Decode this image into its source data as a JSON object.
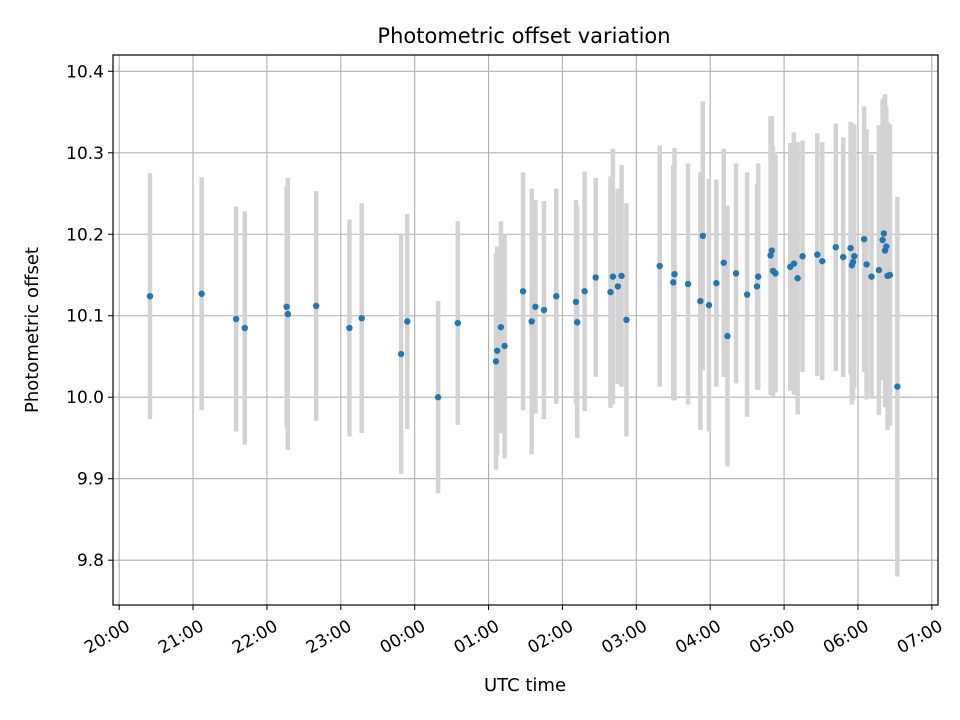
{
  "chart_data": {
    "type": "scatter",
    "title": "Photometric offset variation",
    "xlabel": "UTC time",
    "ylabel": "Photometric offset",
    "x_ticks": [
      "20:00",
      "21:00",
      "22:00",
      "23:00",
      "00:00",
      "01:00",
      "02:00",
      "03:00",
      "04:00",
      "05:00",
      "06:00",
      "07:00"
    ],
    "y_ticks": [
      "9.8",
      "9.9",
      "10.0",
      "10.1",
      "10.2",
      "10.3",
      "10.4"
    ],
    "xlim": [
      "19:55",
      "07:05"
    ],
    "ylim": [
      9.745,
      10.42
    ],
    "grid": true,
    "colors": {
      "point": "#1f77b4",
      "errorbar": "#d3d3d3"
    },
    "series": [
      {
        "x": [
          "20:25",
          "21:07",
          "21:35",
          "21:42",
          "22:16",
          "22:17",
          "22:40",
          "23:07",
          "23:17",
          "23:49",
          "23:54",
          "00:19",
          "00:35",
          "01:06",
          "01:07",
          "01:10",
          "01:13",
          "01:28",
          "01:35",
          "01:38",
          "01:45",
          "01:55",
          "02:11",
          "02:12",
          "02:18",
          "02:27",
          "02:39",
          "02:41",
          "02:45",
          "02:48",
          "02:52",
          "03:19",
          "03:30",
          "03:31",
          "03:42",
          "03:52",
          "03:54",
          "03:59",
          "04:05",
          "04:11",
          "04:14",
          "04:21",
          "04:30",
          "04:38",
          "04:39",
          "04:49",
          "04:50",
          "04:51",
          "04:53",
          "05:05",
          "05:08",
          "05:11",
          "05:15",
          "05:27",
          "05:31",
          "05:42",
          "05:48",
          "05:54",
          "05:55",
          "05:56",
          "05:57",
          "06:05",
          "06:07",
          "06:11",
          "06:17",
          "06:20",
          "06:21",
          "06:22",
          "06:23",
          "06:24",
          "06:26",
          "06:32"
        ],
        "y": [
          10.124,
          10.127,
          10.096,
          10.085,
          10.111,
          10.102,
          10.112,
          10.085,
          10.097,
          10.053,
          10.093,
          10.0,
          10.091,
          10.044,
          10.057,
          10.086,
          10.063,
          10.13,
          10.093,
          10.111,
          10.107,
          10.124,
          10.117,
          10.092,
          10.13,
          10.147,
          10.129,
          10.148,
          10.136,
          10.149,
          10.095,
          10.161,
          10.141,
          10.151,
          10.139,
          10.118,
          10.198,
          10.113,
          10.14,
          10.165,
          10.075,
          10.152,
          10.126,
          10.136,
          10.148,
          10.174,
          10.18,
          10.155,
          10.152,
          10.16,
          10.164,
          10.146,
          10.173,
          10.175,
          10.167,
          10.184,
          10.172,
          10.183,
          10.162,
          10.166,
          10.173,
          10.194,
          10.163,
          10.148,
          10.156,
          10.193,
          10.201,
          10.18,
          10.185,
          10.149,
          10.15,
          10.013
        ],
        "yerr": [
          0.151,
          0.143,
          0.138,
          0.143,
          0.148,
          0.167,
          0.141,
          0.133,
          0.141,
          0.147,
          0.132,
          0.118,
          0.125,
          0.133,
          0.128,
          0.13,
          0.138,
          0.146,
          0.163,
          0.131,
          0.134,
          0.132,
          0.125,
          0.142,
          0.147,
          0.122,
          0.142,
          0.157,
          0.12,
          0.136,
          0.143,
          0.148,
          0.144,
          0.155,
          0.148,
          0.158,
          0.165,
          0.155,
          0.127,
          0.14,
          0.16,
          0.135,
          0.15,
          0.126,
          0.139,
          0.171,
          0.165,
          0.154,
          0.146,
          0.152,
          0.161,
          0.167,
          0.142,
          0.149,
          0.146,
          0.152,
          0.147,
          0.155,
          0.171,
          0.17,
          0.161,
          0.163,
          0.166,
          0.15,
          0.178,
          0.172,
          0.166,
          0.192,
          0.172,
          0.189,
          0.185,
          0.233
        ]
      }
    ]
  }
}
